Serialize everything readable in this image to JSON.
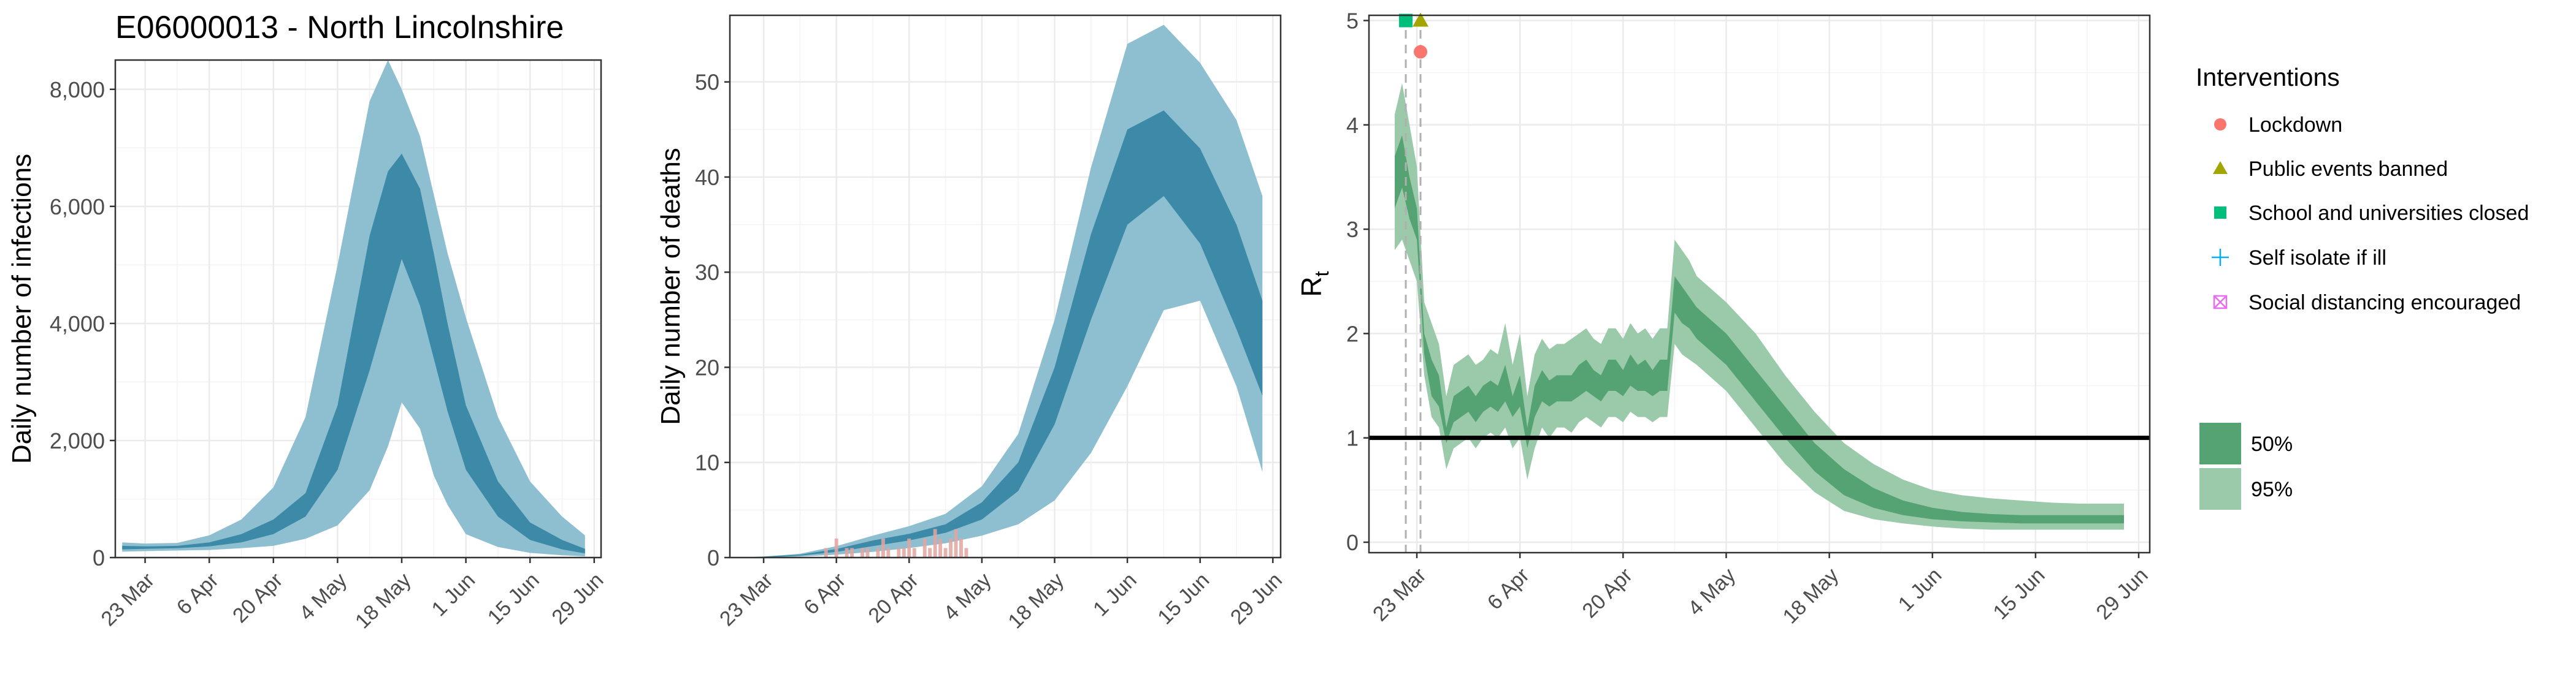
{
  "title": "E06000013 - North Lincolnshire",
  "colors": {
    "blue_95": "#8dbfd0",
    "blue_50": "#3d8aa8",
    "green_95": "#9acaaa",
    "green_50": "#55a272",
    "grid": "#ebebeb",
    "death_bars": "#e0a4a0",
    "lockdown": "#f8766d",
    "public_events": "#a3a500",
    "schools": "#00bf7d",
    "self_isolate": "#00b0f6",
    "social_distancing": "#e76bf3"
  },
  "legend": {
    "interventions_title": "Interventions",
    "interventions": [
      {
        "label": "Lockdown",
        "shape": "circle-icon",
        "color": "#f8766d"
      },
      {
        "label": "Public events banned",
        "shape": "triangle-icon",
        "color": "#a3a500"
      },
      {
        "label": "School and universities closed",
        "shape": "square-icon",
        "color": "#00bf7d"
      },
      {
        "label": "Self isolate if ill",
        "shape": "plus-icon",
        "color": "#00b0f6"
      },
      {
        "label": "Social distancing encouraged",
        "shape": "boxed-x-icon",
        "color": "#e76bf3"
      }
    ],
    "bands": [
      {
        "label": "50%",
        "color": "#55a272"
      },
      {
        "label": "95%",
        "color": "#9acaaa"
      }
    ]
  },
  "chart_data": [
    {
      "id": "infections",
      "type": "area",
      "ylabel": "Daily number of infections",
      "xlabel": "",
      "x_unit": "days since 2020-03-23 (tick labels are dates)",
      "xlim": [
        -6.5,
        99.5
      ],
      "ylim": [
        0,
        8500
      ],
      "yticks": [
        0,
        2000,
        4000,
        6000,
        8000
      ],
      "ytick_labels": [
        "0",
        "2,000",
        "4,000",
        "6,000",
        "8,000"
      ],
      "xticks": [
        0,
        14,
        28,
        42,
        56,
        70,
        84,
        98
      ],
      "xtick_labels": [
        "23 Mar",
        "6 Apr",
        "20 Apr",
        "4 May",
        "18 May",
        "1 Jun",
        "15 Jun",
        "29 Jun"
      ],
      "x": [
        -5,
        0,
        7,
        14,
        21,
        28,
        35,
        42,
        49,
        53,
        56,
        60,
        63,
        66,
        70,
        77,
        84,
        91,
        96
      ],
      "ci95_low": [
        100,
        110,
        120,
        130,
        160,
        200,
        320,
        550,
        1150,
        1900,
        2650,
        2200,
        1400,
        900,
        400,
        180,
        80,
        40,
        20
      ],
      "ci95_high": [
        260,
        240,
        250,
        380,
        650,
        1200,
        2400,
        5000,
        7800,
        8500,
        8000,
        7200,
        6200,
        5200,
        4100,
        2400,
        1300,
        700,
        380
      ],
      "ci50_low": [
        140,
        150,
        160,
        190,
        260,
        400,
        700,
        1500,
        3200,
        4300,
        5100,
        4300,
        3400,
        2500,
        1500,
        700,
        300,
        140,
        70
      ],
      "ci50_high": [
        200,
        190,
        200,
        260,
        400,
        650,
        1100,
        2600,
        5500,
        6600,
        6900,
        6300,
        5200,
        4000,
        2600,
        1300,
        600,
        300,
        150
      ]
    },
    {
      "id": "deaths",
      "type": "area",
      "ylabel": "Daily number of deaths",
      "xlabel": "",
      "x_unit": "days since 2020-03-23 (tick labels are dates)",
      "xlim": [
        -6.5,
        99.5
      ],
      "ylim": [
        0,
        57
      ],
      "yticks": [
        0,
        10,
        20,
        30,
        40,
        50
      ],
      "ytick_labels": [
        "0",
        "10",
        "20",
        "30",
        "40",
        "50"
      ],
      "xticks": [
        0,
        14,
        28,
        42,
        56,
        70,
        84,
        98
      ],
      "xtick_labels": [
        "23 Mar",
        "6 Apr",
        "20 Apr",
        "4 May",
        "18 May",
        "1 Jun",
        "15 Jun",
        "29 Jun"
      ],
      "x": [
        -5,
        0,
        7,
        14,
        21,
        28,
        35,
        42,
        49,
        56,
        63,
        70,
        77,
        84,
        91,
        96
      ],
      "ci95_low": [
        0,
        0,
        0.1,
        0.3,
        0.6,
        1.0,
        1.5,
        2.3,
        3.5,
        6.0,
        11.0,
        18.0,
        26.0,
        27.0,
        18.0,
        9.0
      ],
      "ci95_high": [
        0,
        0.1,
        0.4,
        1.2,
        2.3,
        3.3,
        4.6,
        7.5,
        13.0,
        25.0,
        41.0,
        54.0,
        56.0,
        52.0,
        46.0,
        38.0
      ],
      "ci50_low": [
        0,
        0,
        0.2,
        0.6,
        1.2,
        1.8,
        2.6,
        4.0,
        7.0,
        14.0,
        25.0,
        35.0,
        38.0,
        33.0,
        24.0,
        17.0
      ],
      "ci50_high": [
        0,
        0.1,
        0.3,
        0.9,
        1.8,
        2.5,
        3.5,
        5.8,
        10.0,
        20.0,
        34.0,
        45.0,
        47.0,
        43.0,
        35.0,
        27.0
      ],
      "observed": {
        "x": [
          12,
          13,
          14,
          15,
          16,
          17,
          18,
          19,
          20,
          21,
          22,
          23,
          24,
          25,
          26,
          27,
          28,
          29,
          30,
          31,
          32,
          33,
          34,
          35,
          36,
          37,
          38,
          39
        ],
        "values": [
          1,
          0,
          2,
          0,
          1,
          1,
          0,
          1,
          1,
          0,
          1,
          2,
          1,
          0,
          1,
          1,
          2,
          1,
          0,
          2,
          1,
          3,
          2,
          1,
          2,
          3,
          2,
          1
        ]
      }
    },
    {
      "id": "rt",
      "type": "area",
      "ylabel": "R",
      "ylabel_subscript": "t",
      "xlabel": "",
      "x_unit": "days since 2020-03-23 (tick labels are dates)",
      "xlim": [
        -6.5,
        99.5
      ],
      "ylim": [
        -0.1,
        5.05
      ],
      "yticks": [
        0,
        1,
        2,
        3,
        4,
        5
      ],
      "ytick_labels": [
        "0",
        "1",
        "2",
        "3",
        "4",
        "5"
      ],
      "xticks": [
        0,
        14,
        28,
        42,
        56,
        70,
        84,
        98
      ],
      "xtick_labels": [
        "23 Mar",
        "6 Apr",
        "20 Apr",
        "4 May",
        "18 May",
        "1 Jun",
        "15 Jun",
        "29 Jun"
      ],
      "reference_line": 1,
      "x": [
        -3,
        -2,
        -1,
        0,
        1,
        2,
        3,
        4,
        5,
        6,
        7,
        8,
        9,
        10,
        11,
        12,
        13,
        14,
        15,
        16,
        17,
        18,
        19,
        20,
        21,
        22,
        23,
        24,
        25,
        26,
        27,
        28,
        29,
        30,
        31,
        32,
        33,
        34,
        35,
        36,
        37,
        38,
        42,
        46,
        50,
        54,
        58,
        62,
        66,
        70,
        74,
        78,
        82,
        86,
        90,
        94,
        96
      ],
      "ci95_low": [
        2.8,
        2.9,
        2.7,
        2.5,
        1.6,
        1.2,
        1.1,
        0.7,
        0.9,
        0.95,
        1.0,
        0.9,
        1.0,
        1.05,
        1.0,
        1.1,
        0.9,
        1.0,
        0.6,
        0.9,
        1.1,
        1.0,
        1.1,
        1.1,
        1.05,
        1.15,
        1.2,
        1.15,
        1.1,
        1.2,
        1.2,
        1.15,
        1.25,
        1.2,
        1.2,
        1.15,
        1.2,
        1.2,
        1.9,
        1.8,
        1.75,
        1.7,
        1.45,
        1.1,
        0.75,
        0.48,
        0.3,
        0.22,
        0.18,
        0.15,
        0.13,
        0.12,
        0.12,
        0.12,
        0.12,
        0.12,
        0.12
      ],
      "ci95_high": [
        4.1,
        4.4,
        4.0,
        3.6,
        2.3,
        2.1,
        1.9,
        1.4,
        1.7,
        1.75,
        1.8,
        1.7,
        1.75,
        1.85,
        1.8,
        2.1,
        1.7,
        2.0,
        1.4,
        1.8,
        1.95,
        1.85,
        1.9,
        1.9,
        1.95,
        2.0,
        2.05,
        1.95,
        1.9,
        2.05,
        2.05,
        1.95,
        2.1,
        2.0,
        2.05,
        1.95,
        2.05,
        2.05,
        2.9,
        2.8,
        2.7,
        2.55,
        2.3,
        2.0,
        1.6,
        1.25,
        0.95,
        0.75,
        0.6,
        0.5,
        0.45,
        0.42,
        0.4,
        0.38,
        0.37,
        0.37,
        0.37
      ],
      "ci50_low": [
        3.2,
        3.4,
        3.1,
        2.9,
        1.8,
        1.4,
        1.3,
        0.95,
        1.15,
        1.2,
        1.25,
        1.15,
        1.25,
        1.3,
        1.25,
        1.35,
        1.2,
        1.3,
        0.9,
        1.2,
        1.35,
        1.3,
        1.35,
        1.35,
        1.35,
        1.4,
        1.45,
        1.4,
        1.35,
        1.45,
        1.45,
        1.4,
        1.5,
        1.45,
        1.45,
        1.4,
        1.45,
        1.45,
        2.2,
        2.1,
        2.05,
        1.95,
        1.7,
        1.35,
        1.0,
        0.68,
        0.45,
        0.33,
        0.26,
        0.22,
        0.2,
        0.19,
        0.18,
        0.18,
        0.18,
        0.18,
        0.18
      ],
      "ci50_high": [
        3.7,
        3.9,
        3.5,
        3.2,
        2.0,
        1.75,
        1.6,
        1.1,
        1.4,
        1.45,
        1.5,
        1.4,
        1.5,
        1.55,
        1.5,
        1.7,
        1.4,
        1.6,
        1.1,
        1.5,
        1.65,
        1.55,
        1.6,
        1.6,
        1.6,
        1.7,
        1.75,
        1.65,
        1.6,
        1.75,
        1.75,
        1.65,
        1.8,
        1.7,
        1.75,
        1.65,
        1.75,
        1.75,
        2.55,
        2.45,
        2.35,
        2.25,
        2.0,
        1.65,
        1.3,
        0.95,
        0.7,
        0.52,
        0.4,
        0.33,
        0.29,
        0.27,
        0.26,
        0.26,
        0.26,
        0.26,
        0.26
      ],
      "interventions": [
        {
          "name": "Lockdown",
          "x": 0.5,
          "y": 4.7
        },
        {
          "name": "Public events banned",
          "x": 0.5,
          "y": 5.0
        },
        {
          "name": "School and universities closed",
          "x": -1.5,
          "y": 5.0
        }
      ]
    }
  ]
}
